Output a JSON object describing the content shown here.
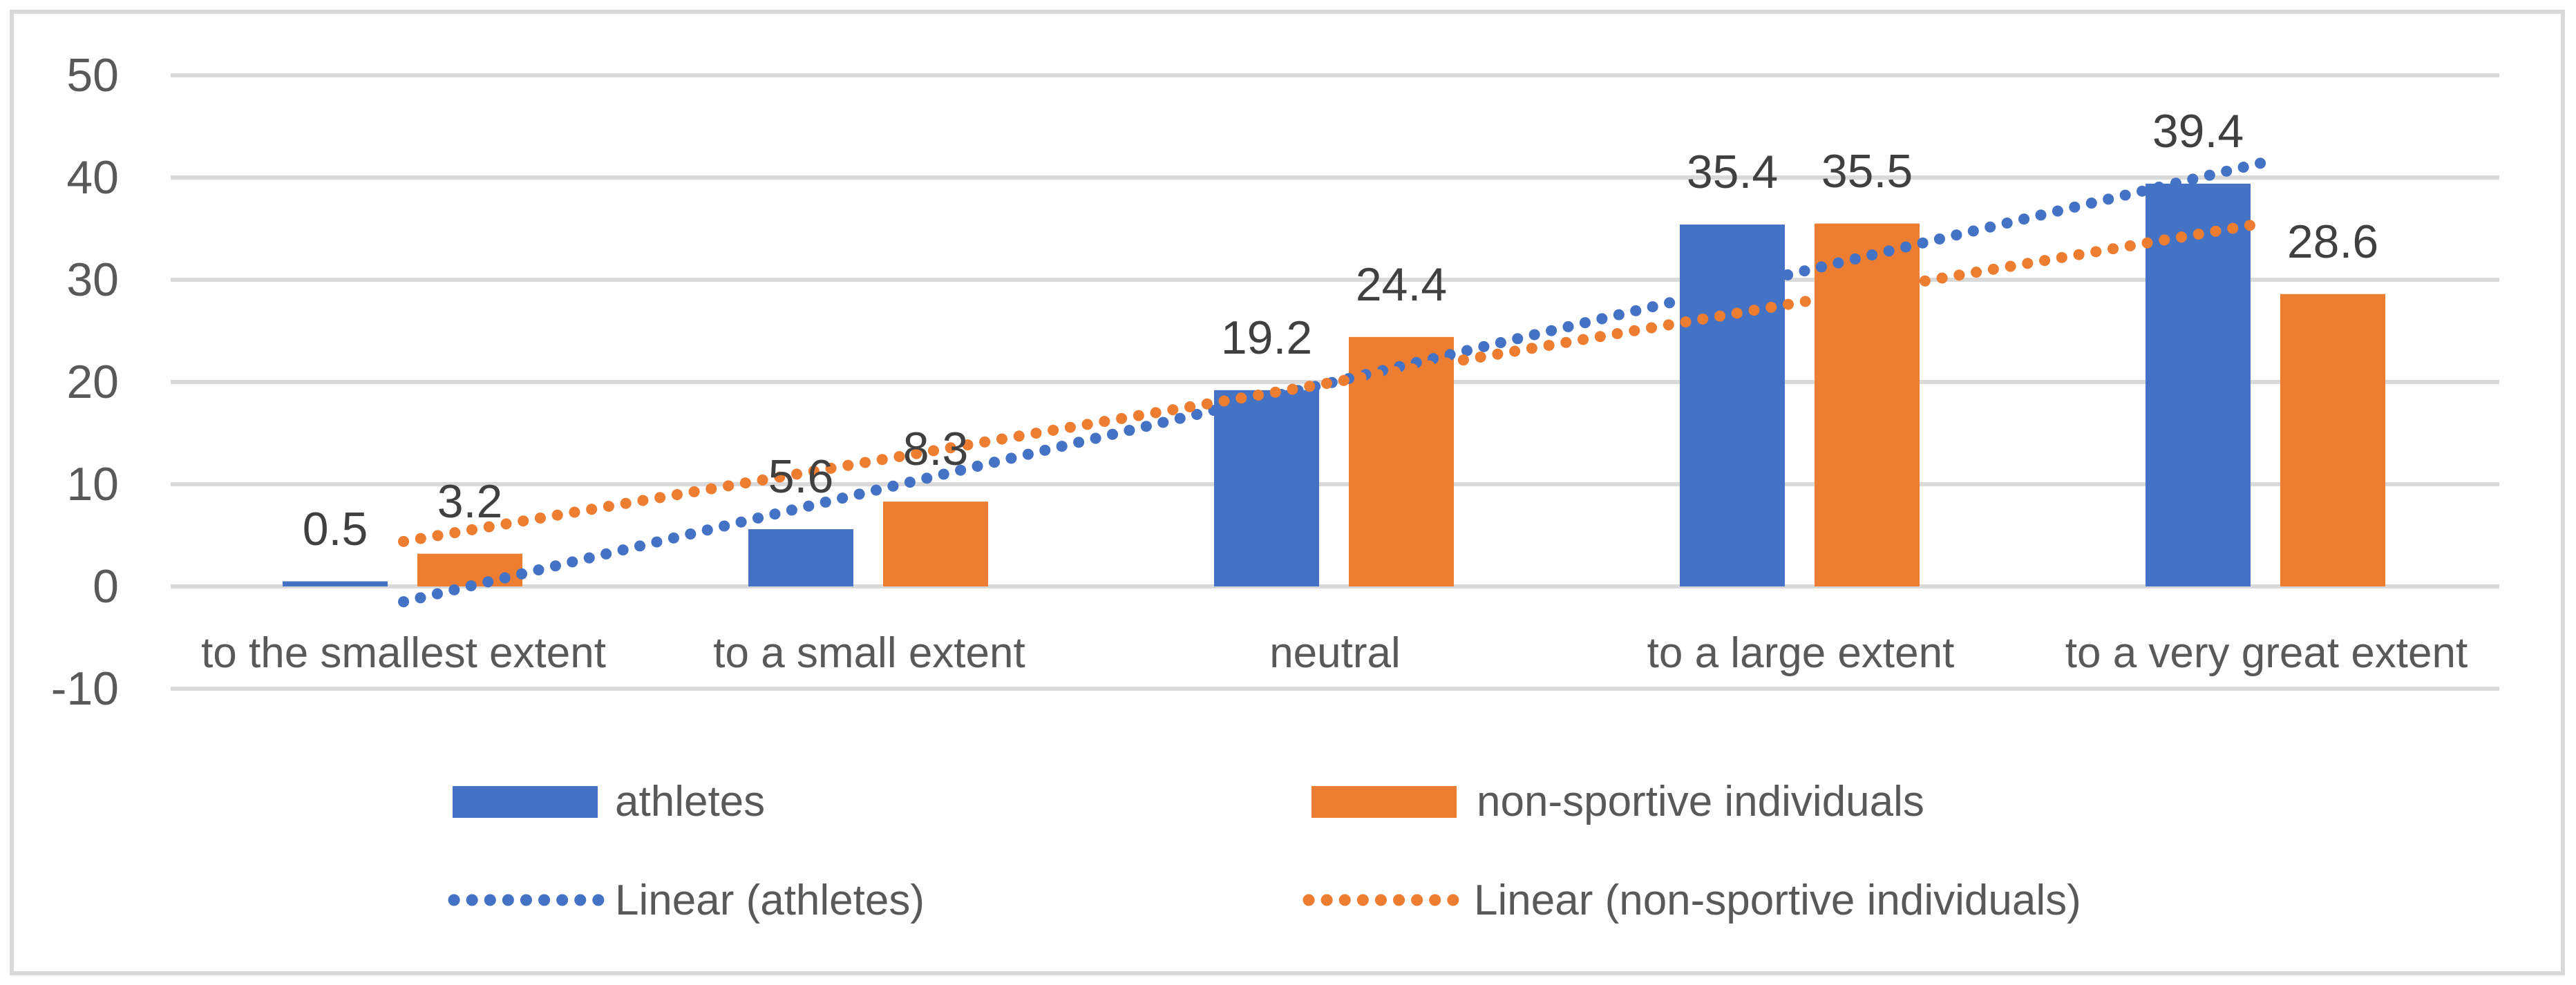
{
  "chart_data": {
    "type": "bar",
    "title": "",
    "xlabel": "",
    "ylabel": "",
    "categories": [
      "to the smallest extent",
      "to a small extent",
      "neutral",
      "to a large extent",
      "to a very great extent"
    ],
    "series": [
      {
        "name": "athletes",
        "color": "#4472C4",
        "values": [
          0.5,
          5.6,
          19.2,
          35.4,
          39.4
        ],
        "labels": [
          "0.5",
          "5.6",
          "19.2",
          "35.4",
          "39.4"
        ],
        "trendline": {
          "type": "linear",
          "style": "dotted",
          "legend_label": "Linear (athletes)"
        }
      },
      {
        "name": "non-sportive individuals",
        "color": "#ED7D31",
        "values": [
          3.2,
          8.3,
          24.4,
          35.5,
          28.6
        ],
        "labels": [
          "3.2",
          "8.3",
          "24.4",
          "35.5",
          "28.6"
        ],
        "trendline": {
          "type": "linear",
          "style": "dotted",
          "legend_label": "Linear (non-sportive individuals)"
        }
      }
    ],
    "y_axis": {
      "min": -10,
      "max": 50,
      "step": 10,
      "tick_labels": [
        "-10",
        "0",
        "10",
        "20",
        "30",
        "40",
        "50"
      ]
    },
    "grid": true,
    "legend_position": "bottom"
  },
  "legend": {
    "athletes": "athletes",
    "non_sportive": "non-sportive individuals",
    "linear_athletes": "Linear (athletes)",
    "linear_non_sportive": "Linear (non-sportive individuals)"
  },
  "colors": {
    "athletes": "#4472C4",
    "non_sportive": "#ED7D31",
    "gridline": "#D9D9D9",
    "border": "#D9D9D9",
    "text": "#595959"
  }
}
